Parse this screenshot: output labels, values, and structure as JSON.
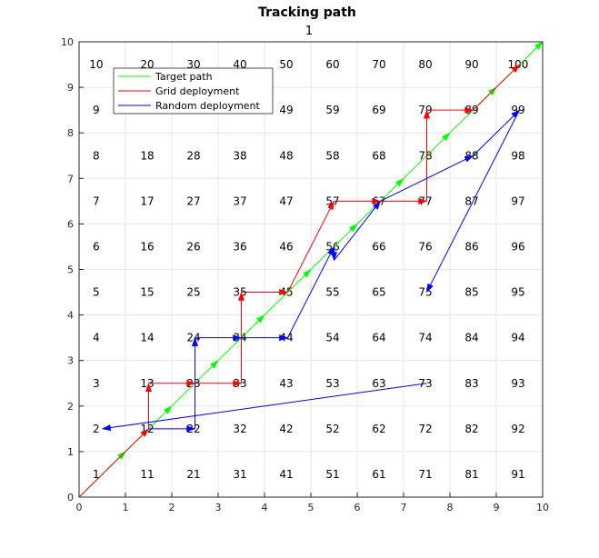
{
  "chart_data": {
    "type": "line",
    "title": "Tracking path",
    "subtitle": "1",
    "xlabel": "",
    "ylabel": "",
    "xlim": [
      0,
      10
    ],
    "ylim": [
      0,
      10
    ],
    "xticks": [
      0,
      1,
      2,
      3,
      4,
      5,
      6,
      7,
      8,
      9,
      10
    ],
    "yticks": [
      0,
      1,
      2,
      3,
      4,
      5,
      6,
      7,
      8,
      9,
      10
    ],
    "grid": true,
    "legend_position": "top-left",
    "node_labels": [
      {
        "label": "1",
        "x": 0.37,
        "y": 0.5
      },
      {
        "label": "2",
        "x": 0.37,
        "y": 1.5
      },
      {
        "label": "3",
        "x": 0.37,
        "y": 2.5
      },
      {
        "label": "4",
        "x": 0.37,
        "y": 3.5
      },
      {
        "label": "5",
        "x": 0.37,
        "y": 4.5
      },
      {
        "label": "6",
        "x": 0.37,
        "y": 5.5
      },
      {
        "label": "7",
        "x": 0.37,
        "y": 6.5
      },
      {
        "label": "8",
        "x": 0.37,
        "y": 7.5
      },
      {
        "label": "9",
        "x": 0.37,
        "y": 8.5
      },
      {
        "label": "10",
        "x": 0.37,
        "y": 9.5
      },
      {
        "label": "11",
        "x": 1.47,
        "y": 0.5
      },
      {
        "label": "12",
        "x": 1.47,
        "y": 1.5
      },
      {
        "label": "13",
        "x": 1.47,
        "y": 2.5
      },
      {
        "label": "14",
        "x": 1.47,
        "y": 3.5
      },
      {
        "label": "15",
        "x": 1.47,
        "y": 4.5
      },
      {
        "label": "16",
        "x": 1.47,
        "y": 5.5
      },
      {
        "label": "17",
        "x": 1.47,
        "y": 6.5
      },
      {
        "label": "18",
        "x": 1.47,
        "y": 7.5
      },
      {
        "label": "19",
        "x": 1.47,
        "y": 8.5
      },
      {
        "label": "20",
        "x": 1.47,
        "y": 9.5
      },
      {
        "label": "21",
        "x": 2.47,
        "y": 0.5
      },
      {
        "label": "22",
        "x": 2.47,
        "y": 1.5
      },
      {
        "label": "23",
        "x": 2.47,
        "y": 2.5
      },
      {
        "label": "24",
        "x": 2.47,
        "y": 3.5
      },
      {
        "label": "25",
        "x": 2.47,
        "y": 4.5
      },
      {
        "label": "26",
        "x": 2.47,
        "y": 5.5
      },
      {
        "label": "27",
        "x": 2.47,
        "y": 6.5
      },
      {
        "label": "28",
        "x": 2.47,
        "y": 7.5
      },
      {
        "label": "29",
        "x": 2.47,
        "y": 8.5
      },
      {
        "label": "30",
        "x": 2.47,
        "y": 9.5
      },
      {
        "label": "31",
        "x": 3.47,
        "y": 0.5
      },
      {
        "label": "32",
        "x": 3.47,
        "y": 1.5
      },
      {
        "label": "33",
        "x": 3.47,
        "y": 2.5
      },
      {
        "label": "34",
        "x": 3.47,
        "y": 3.5
      },
      {
        "label": "35",
        "x": 3.47,
        "y": 4.5
      },
      {
        "label": "36",
        "x": 3.47,
        "y": 5.5
      },
      {
        "label": "37",
        "x": 3.47,
        "y": 6.5
      },
      {
        "label": "38",
        "x": 3.47,
        "y": 7.5
      },
      {
        "label": "39",
        "x": 3.47,
        "y": 8.5
      },
      {
        "label": "40",
        "x": 3.47,
        "y": 9.5
      },
      {
        "label": "41",
        "x": 4.47,
        "y": 0.5
      },
      {
        "label": "42",
        "x": 4.47,
        "y": 1.5
      },
      {
        "label": "43",
        "x": 4.47,
        "y": 2.5
      },
      {
        "label": "44",
        "x": 4.47,
        "y": 3.5
      },
      {
        "label": "45",
        "x": 4.47,
        "y": 4.5
      },
      {
        "label": "46",
        "x": 4.47,
        "y": 5.5
      },
      {
        "label": "47",
        "x": 4.47,
        "y": 6.5
      },
      {
        "label": "48",
        "x": 4.47,
        "y": 7.5
      },
      {
        "label": "49",
        "x": 4.47,
        "y": 8.5
      },
      {
        "label": "50",
        "x": 4.47,
        "y": 9.5
      },
      {
        "label": "51",
        "x": 5.47,
        "y": 0.5
      },
      {
        "label": "52",
        "x": 5.47,
        "y": 1.5
      },
      {
        "label": "53",
        "x": 5.47,
        "y": 2.5
      },
      {
        "label": "54",
        "x": 5.47,
        "y": 3.5
      },
      {
        "label": "55",
        "x": 5.47,
        "y": 4.5
      },
      {
        "label": "56",
        "x": 5.47,
        "y": 5.5
      },
      {
        "label": "57",
        "x": 5.47,
        "y": 6.5
      },
      {
        "label": "58",
        "x": 5.47,
        "y": 7.5
      },
      {
        "label": "59",
        "x": 5.47,
        "y": 8.5
      },
      {
        "label": "60",
        "x": 5.47,
        "y": 9.5
      },
      {
        "label": "61",
        "x": 6.47,
        "y": 0.5
      },
      {
        "label": "62",
        "x": 6.47,
        "y": 1.5
      },
      {
        "label": "63",
        "x": 6.47,
        "y": 2.5
      },
      {
        "label": "64",
        "x": 6.47,
        "y": 3.5
      },
      {
        "label": "65",
        "x": 6.47,
        "y": 4.5
      },
      {
        "label": "66",
        "x": 6.47,
        "y": 5.5
      },
      {
        "label": "67",
        "x": 6.47,
        "y": 6.5
      },
      {
        "label": "68",
        "x": 6.47,
        "y": 7.5
      },
      {
        "label": "69",
        "x": 6.47,
        "y": 8.5
      },
      {
        "label": "70",
        "x": 6.47,
        "y": 9.5
      },
      {
        "label": "71",
        "x": 7.47,
        "y": 0.5
      },
      {
        "label": "72",
        "x": 7.47,
        "y": 1.5
      },
      {
        "label": "73",
        "x": 7.47,
        "y": 2.5
      },
      {
        "label": "74",
        "x": 7.47,
        "y": 3.5
      },
      {
        "label": "75",
        "x": 7.47,
        "y": 4.5
      },
      {
        "label": "76",
        "x": 7.47,
        "y": 5.5
      },
      {
        "label": "77",
        "x": 7.47,
        "y": 6.5
      },
      {
        "label": "78",
        "x": 7.47,
        "y": 7.5
      },
      {
        "label": "79",
        "x": 7.47,
        "y": 8.5
      },
      {
        "label": "80",
        "x": 7.47,
        "y": 9.5
      },
      {
        "label": "81",
        "x": 8.47,
        "y": 0.5
      },
      {
        "label": "82",
        "x": 8.47,
        "y": 1.5
      },
      {
        "label": "83",
        "x": 8.47,
        "y": 2.5
      },
      {
        "label": "84",
        "x": 8.47,
        "y": 3.5
      },
      {
        "label": "85",
        "x": 8.47,
        "y": 4.5
      },
      {
        "label": "86",
        "x": 8.47,
        "y": 5.5
      },
      {
        "label": "87",
        "x": 8.47,
        "y": 6.5
      },
      {
        "label": "88",
        "x": 8.47,
        "y": 7.5
      },
      {
        "label": "89",
        "x": 8.47,
        "y": 8.5
      },
      {
        "label": "90",
        "x": 8.47,
        "y": 9.5
      },
      {
        "label": "91",
        "x": 9.47,
        "y": 0.5
      },
      {
        "label": "92",
        "x": 9.47,
        "y": 1.5
      },
      {
        "label": "93",
        "x": 9.47,
        "y": 2.5
      },
      {
        "label": "94",
        "x": 9.47,
        "y": 3.5
      },
      {
        "label": "95",
        "x": 9.47,
        "y": 4.5
      },
      {
        "label": "96",
        "x": 9.47,
        "y": 5.5
      },
      {
        "label": "97",
        "x": 9.47,
        "y": 6.5
      },
      {
        "label": "98",
        "x": 9.47,
        "y": 7.5
      },
      {
        "label": "99",
        "x": 9.47,
        "y": 8.5
      },
      {
        "label": "100",
        "x": 9.47,
        "y": 9.5
      }
    ],
    "series": [
      {
        "name": "Target path",
        "color": "#00ff00",
        "points": [
          [
            0,
            0
          ],
          [
            1,
            1
          ],
          [
            2,
            2
          ],
          [
            3,
            3
          ],
          [
            4,
            4
          ],
          [
            5,
            5
          ],
          [
            6,
            6
          ],
          [
            7,
            7
          ],
          [
            8,
            8
          ],
          [
            9,
            9
          ],
          [
            10,
            10
          ]
        ]
      },
      {
        "name": "Grid deployment",
        "color": "#ff0000",
        "points": [
          [
            0,
            0
          ],
          [
            1.5,
            1.5
          ],
          [
            1.5,
            2.5
          ],
          [
            2.5,
            2.5
          ],
          [
            3.5,
            2.5
          ],
          [
            3.5,
            4.5
          ],
          [
            4.5,
            4.5
          ],
          [
            5.5,
            6.5
          ],
          [
            6.5,
            6.5
          ],
          [
            7.5,
            6.5
          ],
          [
            7.5,
            8.5
          ],
          [
            8.5,
            8.5
          ],
          [
            9.5,
            9.5
          ]
        ]
      },
      {
        "name": "Random deployment",
        "color": "#0000ff",
        "points": [
          [
            1.5,
            1.5
          ],
          [
            2.5,
            1.5
          ],
          [
            2.5,
            3.5
          ],
          [
            3.5,
            3.5
          ],
          [
            4.5,
            3.5
          ],
          [
            5.5,
            5.5
          ],
          [
            5.5,
            5.2
          ],
          [
            6.5,
            6.5
          ],
          [
            8.5,
            7.5
          ],
          [
            9.5,
            8.5
          ],
          [
            7.5,
            4.5
          ]
        ],
        "extra_segments": [
          [
            [
              7.5,
              2.5
            ],
            [
              0.5,
              1.5
            ]
          ]
        ]
      }
    ]
  }
}
